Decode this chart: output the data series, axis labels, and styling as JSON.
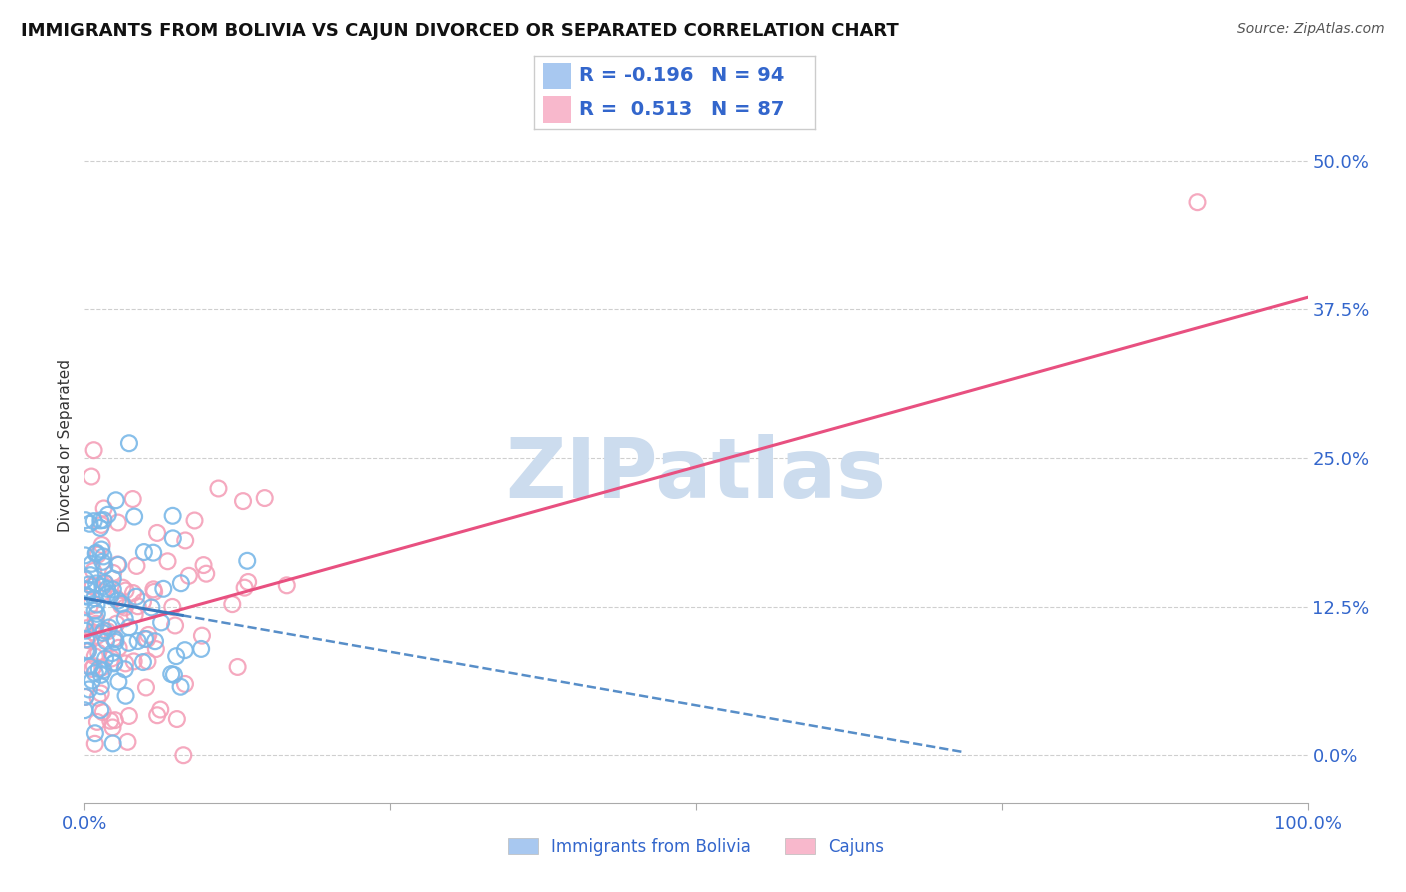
{
  "title": "IMMIGRANTS FROM BOLIVIA VS CAJUN DIVORCED OR SEPARATED CORRELATION CHART",
  "source_text": "Source: ZipAtlas.com",
  "ylabel": "Divorced or Separated",
  "x_min": 0.0,
  "x_max": 1.0,
  "y_min": -0.04,
  "y_max": 0.56,
  "ytick_labels": [
    "0.0%",
    "12.5%",
    "25.0%",
    "37.5%",
    "50.0%"
  ],
  "ytick_values": [
    0.0,
    0.125,
    0.25,
    0.375,
    0.5
  ],
  "legend_labels": [
    "Immigrants from Bolivia",
    "Cajuns"
  ],
  "legend_r_values": [
    "-0.196",
    "0.513"
  ],
  "legend_n_values": [
    "94",
    "87"
  ],
  "blue_scatter_color": "#7ab8e8",
  "pink_scatter_color": "#f4a0b8",
  "blue_line_color": "#3a7abf",
  "pink_line_color": "#e85080",
  "blue_legend_color": "#a8c8f0",
  "pink_legend_color": "#f8b8cc",
  "watermark_text": "ZIPatlas",
  "watermark_color": "#ccdcee",
  "background_color": "#ffffff",
  "grid_color": "#bbbbbb",
  "axis_label_color": "#3366cc",
  "title_color": "#111111",
  "blue_R": -0.196,
  "pink_R": 0.513,
  "blue_N": 94,
  "pink_N": 87,
  "blue_intercept": 0.132,
  "blue_slope": -0.18,
  "pink_intercept": 0.1,
  "pink_slope": 0.285
}
